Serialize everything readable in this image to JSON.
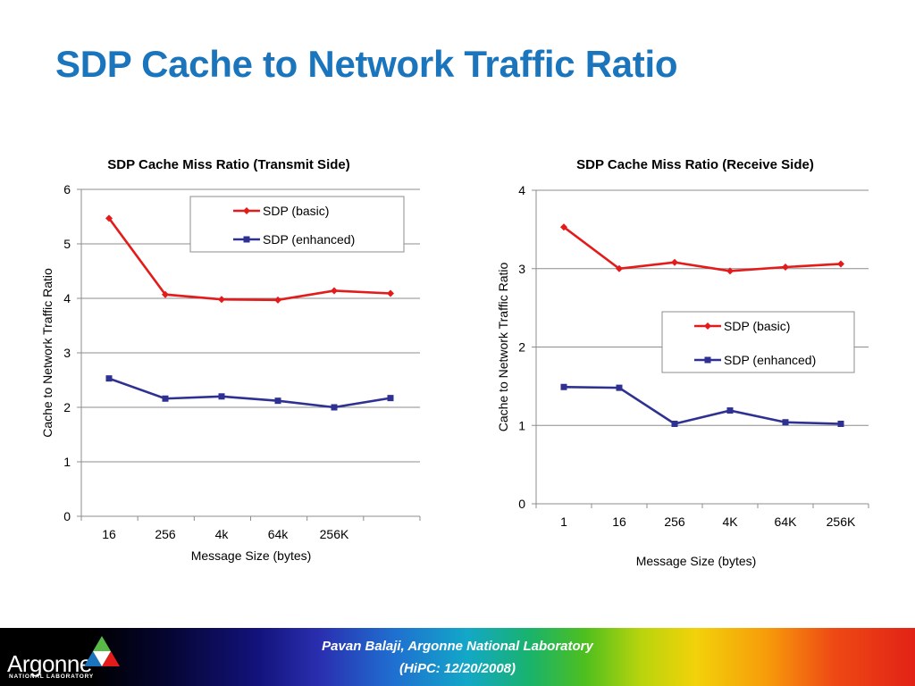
{
  "slide": {
    "title": "SDP Cache to Network Traffic Ratio"
  },
  "footer": {
    "line1": "Pavan Balaji, Argonne National Laboratory",
    "line2": "(HiPC: 12/20/2008)",
    "logo_text": "Argonne",
    "logo_subtext": "NATIONAL LABORATORY",
    "logo_icon": "argonne-triangle-logo"
  },
  "colors": {
    "title": "#1b75bc",
    "series_basic": "#e31b1b",
    "series_enhanced": "#2e3192",
    "gridline": "#8c8c8c"
  },
  "chart_data": [
    {
      "type": "line",
      "title": "SDP Cache Miss Ratio (Transmit Side)",
      "xlabel": "Message Size (bytes)",
      "ylabel": "Cache to Network Traffic Ratio",
      "categories": [
        "16",
        "256",
        "4k",
        "64k",
        "256K",
        ""
      ],
      "series": [
        {
          "name": "SDP (basic)",
          "marker": "diamond",
          "values": [
            5.47,
            4.07,
            3.98,
            3.97,
            4.14,
            4.09
          ]
        },
        {
          "name": "SDP (enhanced)",
          "marker": "square",
          "values": [
            2.53,
            2.16,
            2.2,
            2.12,
            2.0,
            2.17
          ]
        }
      ],
      "ylim": [
        0,
        6
      ],
      "yticks": [
        0,
        1,
        2,
        3,
        4,
        5,
        6
      ],
      "grid": true,
      "legend": "top-right"
    },
    {
      "type": "line",
      "title": "SDP Cache Miss Ratio (Receive Side)",
      "xlabel": "Message Size (bytes)",
      "ylabel": "Cache to Network Traffic Ratio",
      "categories": [
        "1",
        "16",
        "256",
        "4K",
        "64K",
        "256K"
      ],
      "series": [
        {
          "name": "SDP (basic)",
          "marker": "diamond",
          "values": [
            3.53,
            3.0,
            3.08,
            2.97,
            3.02,
            3.06
          ]
        },
        {
          "name": "SDP (enhanced)",
          "marker": "square",
          "values": [
            1.49,
            1.48,
            1.02,
            1.19,
            1.04,
            1.02
          ]
        }
      ],
      "ylim": [
        0,
        4
      ],
      "yticks": [
        0,
        1,
        2,
        3,
        4
      ],
      "grid": true,
      "legend": "center-right"
    }
  ]
}
